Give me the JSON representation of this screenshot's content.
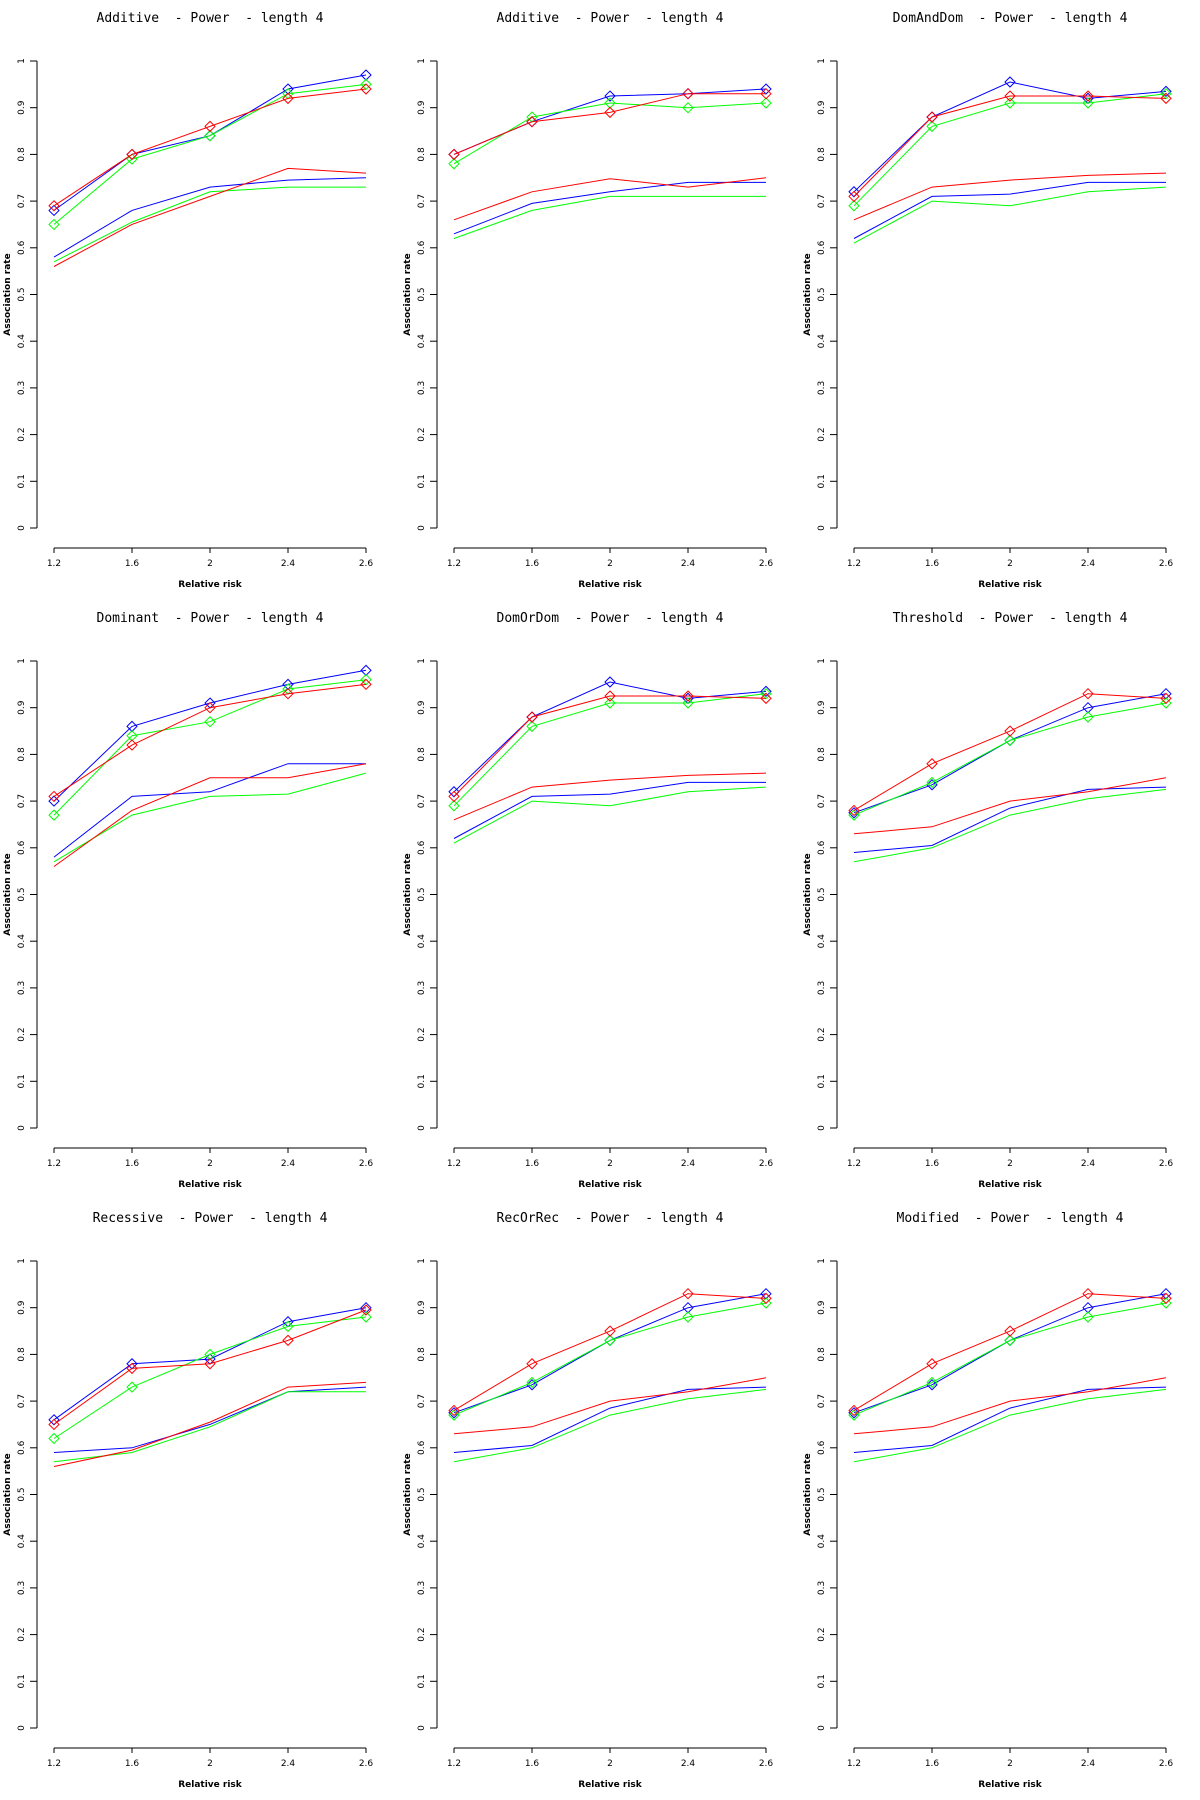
{
  "page": {
    "background": "#ffffff",
    "grid": "3x3 line charts"
  },
  "colors": {
    "red": "#ff0000",
    "blue": "#0000ff",
    "green": "#00ff00",
    "axis": "#000000"
  },
  "axes": {
    "x": {
      "label": "Relative risk",
      "tick_labels": [
        "1.2",
        "1.6",
        "2",
        "2.4",
        "2.6"
      ],
      "tick_values": [
        1.2,
        1.6,
        2,
        2.4,
        2.6
      ],
      "spacing": "equal"
    },
    "y": {
      "label": "Association rate",
      "tick_labels": [
        "0",
        "0.1",
        "0.2",
        "0.3",
        "0.4",
        "0.5",
        "0.6",
        "0.7",
        "0.8",
        "0.9",
        "1"
      ],
      "tick_values": [
        0,
        0.1,
        0.2,
        0.3,
        0.4,
        0.5,
        0.6,
        0.7,
        0.8,
        0.9,
        1
      ],
      "range": [
        0,
        1
      ]
    }
  },
  "chart_data": [
    {
      "type": "line",
      "title": "Additive  - Power  - length 4",
      "xlabel": "Relative risk",
      "ylabel": "Association rate",
      "x": [
        1.2,
        1.6,
        2,
        2.4,
        2.6
      ],
      "ylim": [
        0,
        1
      ],
      "series": [
        {
          "name": "blue",
          "color": "#0000ff",
          "marker": "none",
          "values": [
            0.58,
            0.68,
            0.73,
            0.745,
            0.75
          ]
        },
        {
          "name": "green",
          "color": "#00ff00",
          "marker": "none",
          "values": [
            0.57,
            0.655,
            0.72,
            0.73,
            0.73
          ]
        },
        {
          "name": "red",
          "color": "#ff0000",
          "marker": "none",
          "values": [
            0.56,
            0.65,
            0.71,
            0.77,
            0.76
          ]
        },
        {
          "name": "blue (diamond)",
          "color": "#0000ff",
          "marker": "diamond",
          "values": [
            0.68,
            0.8,
            0.84,
            0.94,
            0.97
          ]
        },
        {
          "name": "green (diamond)",
          "color": "#00ff00",
          "marker": "diamond",
          "values": [
            0.65,
            0.79,
            0.84,
            0.93,
            0.95
          ]
        },
        {
          "name": "red (diamond)",
          "color": "#ff0000",
          "marker": "diamond",
          "values": [
            0.69,
            0.8,
            0.86,
            0.92,
            0.94
          ]
        }
      ]
    },
    {
      "type": "line",
      "title": "Additive  - Power  - length 4",
      "xlabel": "Relative risk",
      "ylabel": "Association rate",
      "x": [
        1.2,
        1.6,
        2,
        2.4,
        2.6
      ],
      "ylim": [
        0,
        1
      ],
      "series": [
        {
          "name": "blue",
          "color": "#0000ff",
          "marker": "none",
          "values": [
            0.63,
            0.695,
            0.72,
            0.74,
            0.74
          ]
        },
        {
          "name": "green",
          "color": "#00ff00",
          "marker": "none",
          "values": [
            0.62,
            0.68,
            0.71,
            0.71,
            0.71
          ]
        },
        {
          "name": "red",
          "color": "#ff0000",
          "marker": "none",
          "values": [
            0.66,
            0.72,
            0.748,
            0.73,
            0.75
          ]
        },
        {
          "name": "blue (diamond)",
          "color": "#0000ff",
          "marker": "diamond",
          "values": [
            0.8,
            0.87,
            0.925,
            0.93,
            0.94
          ]
        },
        {
          "name": "green (diamond)",
          "color": "#00ff00",
          "marker": "diamond",
          "values": [
            0.78,
            0.88,
            0.91,
            0.9,
            0.91
          ]
        },
        {
          "name": "red (diamond)",
          "color": "#ff0000",
          "marker": "diamond",
          "values": [
            0.8,
            0.87,
            0.89,
            0.93,
            0.93
          ]
        }
      ]
    },
    {
      "type": "line",
      "title": "DomAndDom  - Power  - length 4",
      "xlabel": "Relative risk",
      "ylabel": "Association rate",
      "x": [
        1.2,
        1.6,
        2,
        2.4,
        2.6
      ],
      "ylim": [
        0,
        1
      ],
      "series": [
        {
          "name": "blue",
          "color": "#0000ff",
          "marker": "none",
          "values": [
            0.62,
            0.71,
            0.715,
            0.74,
            0.74
          ]
        },
        {
          "name": "green",
          "color": "#00ff00",
          "marker": "none",
          "values": [
            0.61,
            0.7,
            0.69,
            0.72,
            0.73
          ]
        },
        {
          "name": "red",
          "color": "#ff0000",
          "marker": "none",
          "values": [
            0.66,
            0.73,
            0.745,
            0.755,
            0.76
          ]
        },
        {
          "name": "blue (diamond)",
          "color": "#0000ff",
          "marker": "diamond",
          "values": [
            0.72,
            0.88,
            0.955,
            0.92,
            0.935
          ]
        },
        {
          "name": "green (diamond)",
          "color": "#00ff00",
          "marker": "diamond",
          "values": [
            0.69,
            0.86,
            0.91,
            0.91,
            0.93
          ]
        },
        {
          "name": "red (diamond)",
          "color": "#ff0000",
          "marker": "diamond",
          "values": [
            0.71,
            0.88,
            0.925,
            0.925,
            0.92
          ]
        }
      ]
    },
    {
      "type": "line",
      "title": "Dominant  - Power  - length 4",
      "xlabel": "Relative risk",
      "ylabel": "Association rate",
      "x": [
        1.2,
        1.6,
        2,
        2.4,
        2.6
      ],
      "ylim": [
        0,
        1
      ],
      "series": [
        {
          "name": "blue",
          "color": "#0000ff",
          "marker": "none",
          "values": [
            0.58,
            0.71,
            0.72,
            0.78,
            0.78
          ]
        },
        {
          "name": "green",
          "color": "#00ff00",
          "marker": "none",
          "values": [
            0.57,
            0.67,
            0.71,
            0.715,
            0.76
          ]
        },
        {
          "name": "red",
          "color": "#ff0000",
          "marker": "none",
          "values": [
            0.56,
            0.68,
            0.75,
            0.75,
            0.78
          ]
        },
        {
          "name": "blue (diamond)",
          "color": "#0000ff",
          "marker": "diamond",
          "values": [
            0.7,
            0.86,
            0.91,
            0.95,
            0.98
          ]
        },
        {
          "name": "green (diamond)",
          "color": "#00ff00",
          "marker": "diamond",
          "values": [
            0.67,
            0.84,
            0.87,
            0.94,
            0.96
          ]
        },
        {
          "name": "red (diamond)",
          "color": "#ff0000",
          "marker": "diamond",
          "values": [
            0.71,
            0.82,
            0.9,
            0.93,
            0.95
          ]
        }
      ]
    },
    {
      "type": "line",
      "title": "DomOrDom  - Power  - length 4",
      "xlabel": "Relative risk",
      "ylabel": "Association rate",
      "x": [
        1.2,
        1.6,
        2,
        2.4,
        2.6
      ],
      "ylim": [
        0,
        1
      ],
      "series": [
        {
          "name": "blue",
          "color": "#0000ff",
          "marker": "none",
          "values": [
            0.62,
            0.71,
            0.715,
            0.74,
            0.74
          ]
        },
        {
          "name": "green",
          "color": "#00ff00",
          "marker": "none",
          "values": [
            0.61,
            0.7,
            0.69,
            0.72,
            0.73
          ]
        },
        {
          "name": "red",
          "color": "#ff0000",
          "marker": "none",
          "values": [
            0.66,
            0.73,
            0.745,
            0.755,
            0.76
          ]
        },
        {
          "name": "blue (diamond)",
          "color": "#0000ff",
          "marker": "diamond",
          "values": [
            0.72,
            0.88,
            0.955,
            0.92,
            0.935
          ]
        },
        {
          "name": "green (diamond)",
          "color": "#00ff00",
          "marker": "diamond",
          "values": [
            0.69,
            0.86,
            0.91,
            0.91,
            0.93
          ]
        },
        {
          "name": "red (diamond)",
          "color": "#ff0000",
          "marker": "diamond",
          "values": [
            0.71,
            0.88,
            0.925,
            0.925,
            0.92
          ]
        }
      ]
    },
    {
      "type": "line",
      "title": "Threshold  - Power  - length 4",
      "xlabel": "Relative risk",
      "ylabel": "Association rate",
      "x": [
        1.2,
        1.6,
        2,
        2.4,
        2.6
      ],
      "ylim": [
        0,
        1
      ],
      "series": [
        {
          "name": "blue",
          "color": "#0000ff",
          "marker": "none",
          "values": [
            0.59,
            0.605,
            0.685,
            0.725,
            0.73
          ]
        },
        {
          "name": "green",
          "color": "#00ff00",
          "marker": "none",
          "values": [
            0.57,
            0.6,
            0.67,
            0.705,
            0.725
          ]
        },
        {
          "name": "red",
          "color": "#ff0000",
          "marker": "none",
          "values": [
            0.63,
            0.645,
            0.7,
            0.72,
            0.75
          ]
        },
        {
          "name": "blue (diamond)",
          "color": "#0000ff",
          "marker": "diamond",
          "values": [
            0.675,
            0.735,
            0.83,
            0.9,
            0.93
          ]
        },
        {
          "name": "green (diamond)",
          "color": "#00ff00",
          "marker": "diamond",
          "values": [
            0.67,
            0.74,
            0.83,
            0.88,
            0.91
          ]
        },
        {
          "name": "red (diamond)",
          "color": "#ff0000",
          "marker": "diamond",
          "values": [
            0.68,
            0.78,
            0.85,
            0.93,
            0.92
          ]
        }
      ]
    },
    {
      "type": "line",
      "title": "Recessive  - Power  - length 4",
      "xlabel": "Relative risk",
      "ylabel": "Association rate",
      "x": [
        1.2,
        1.6,
        2,
        2.4,
        2.6
      ],
      "ylim": [
        0,
        1
      ],
      "series": [
        {
          "name": "blue",
          "color": "#0000ff",
          "marker": "none",
          "values": [
            0.59,
            0.6,
            0.65,
            0.72,
            0.73
          ]
        },
        {
          "name": "green",
          "color": "#00ff00",
          "marker": "none",
          "values": [
            0.57,
            0.59,
            0.645,
            0.72,
            0.72
          ]
        },
        {
          "name": "red",
          "color": "#ff0000",
          "marker": "none",
          "values": [
            0.56,
            0.595,
            0.655,
            0.73,
            0.74
          ]
        },
        {
          "name": "blue (diamond)",
          "color": "#0000ff",
          "marker": "diamond",
          "values": [
            0.66,
            0.78,
            0.79,
            0.87,
            0.9
          ]
        },
        {
          "name": "green (diamond)",
          "color": "#00ff00",
          "marker": "diamond",
          "values": [
            0.62,
            0.73,
            0.8,
            0.86,
            0.88
          ]
        },
        {
          "name": "red (diamond)",
          "color": "#ff0000",
          "marker": "diamond",
          "values": [
            0.65,
            0.77,
            0.78,
            0.83,
            0.895
          ]
        }
      ]
    },
    {
      "type": "line",
      "title": "RecOrRec  - Power  - length 4",
      "xlabel": "Relative risk",
      "ylabel": "Association rate",
      "x": [
        1.2,
        1.6,
        2,
        2.4,
        2.6
      ],
      "ylim": [
        0,
        1
      ],
      "series": [
        {
          "name": "blue",
          "color": "#0000ff",
          "marker": "none",
          "values": [
            0.59,
            0.605,
            0.685,
            0.725,
            0.73
          ]
        },
        {
          "name": "green",
          "color": "#00ff00",
          "marker": "none",
          "values": [
            0.57,
            0.6,
            0.67,
            0.705,
            0.725
          ]
        },
        {
          "name": "red",
          "color": "#ff0000",
          "marker": "none",
          "values": [
            0.63,
            0.645,
            0.7,
            0.72,
            0.75
          ]
        },
        {
          "name": "blue (diamond)",
          "color": "#0000ff",
          "marker": "diamond",
          "values": [
            0.675,
            0.735,
            0.83,
            0.9,
            0.93
          ]
        },
        {
          "name": "green (diamond)",
          "color": "#00ff00",
          "marker": "diamond",
          "values": [
            0.67,
            0.74,
            0.83,
            0.88,
            0.91
          ]
        },
        {
          "name": "red (diamond)",
          "color": "#ff0000",
          "marker": "diamond",
          "values": [
            0.68,
            0.78,
            0.85,
            0.93,
            0.92
          ]
        }
      ]
    },
    {
      "type": "line",
      "title": "Modified  - Power  - length 4",
      "xlabel": "Relative risk",
      "ylabel": "Association rate",
      "x": [
        1.2,
        1.6,
        2,
        2.4,
        2.6
      ],
      "ylim": [
        0,
        1
      ],
      "series": [
        {
          "name": "blue",
          "color": "#0000ff",
          "marker": "none",
          "values": [
            0.59,
            0.605,
            0.685,
            0.725,
            0.73
          ]
        },
        {
          "name": "green",
          "color": "#00ff00",
          "marker": "none",
          "values": [
            0.57,
            0.6,
            0.67,
            0.705,
            0.725
          ]
        },
        {
          "name": "red",
          "color": "#ff0000",
          "marker": "none",
          "values": [
            0.63,
            0.645,
            0.7,
            0.72,
            0.75
          ]
        },
        {
          "name": "blue (diamond)",
          "color": "#0000ff",
          "marker": "diamond",
          "values": [
            0.675,
            0.735,
            0.83,
            0.9,
            0.93
          ]
        },
        {
          "name": "green (diamond)",
          "color": "#00ff00",
          "marker": "diamond",
          "values": [
            0.67,
            0.74,
            0.83,
            0.88,
            0.91
          ]
        },
        {
          "name": "red (diamond)",
          "color": "#ff0000",
          "marker": "diamond",
          "values": [
            0.68,
            0.78,
            0.85,
            0.93,
            0.92
          ]
        }
      ]
    }
  ]
}
